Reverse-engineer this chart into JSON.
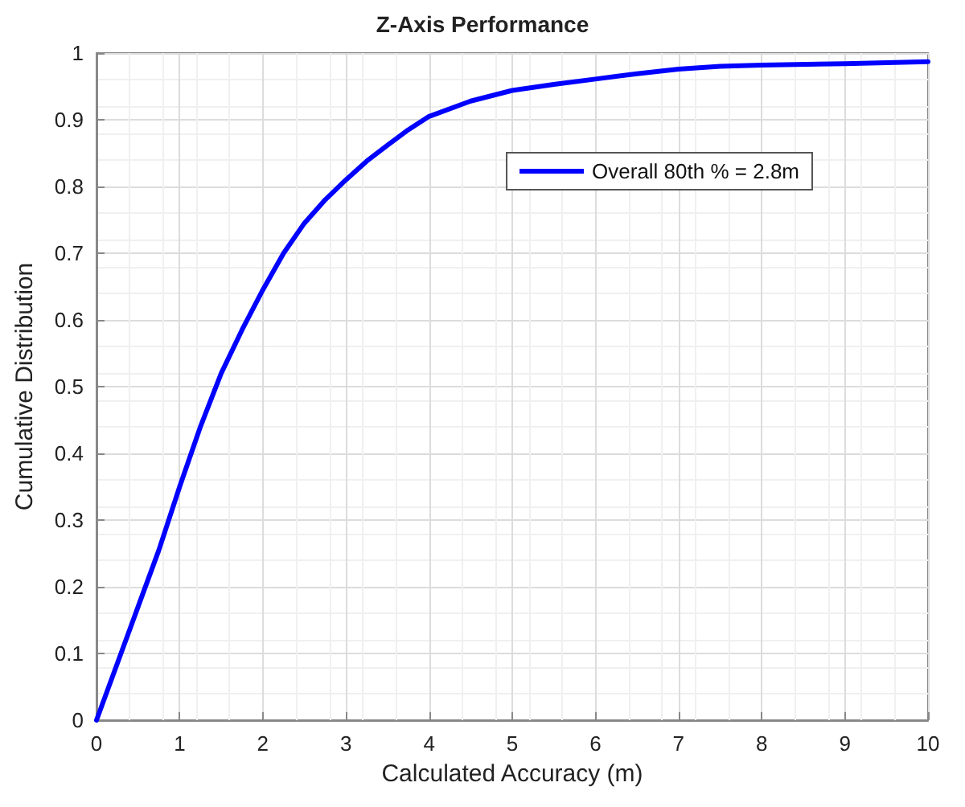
{
  "chart_data": {
    "type": "line",
    "title": "Z-Axis Performance",
    "xlabel": "Calculated Accuracy (m)",
    "ylabel": "Cumulative Distribution",
    "x": [
      0,
      0.25,
      0.5,
      0.75,
      1,
      1.25,
      1.5,
      1.75,
      2,
      2.25,
      2.5,
      2.75,
      3,
      3.25,
      3.5,
      3.75,
      4,
      4.5,
      5,
      5.5,
      6,
      6.5,
      7,
      7.5,
      8,
      9,
      10
    ],
    "series": [
      {
        "name": "Overall 80th % = 2.8m",
        "color": "#0000ff",
        "values": [
          0,
          0.085,
          0.17,
          0.255,
          0.35,
          0.44,
          0.52,
          0.585,
          0.645,
          0.7,
          0.745,
          0.78,
          0.81,
          0.838,
          0.862,
          0.885,
          0.905,
          0.928,
          0.944,
          0.953,
          0.961,
          0.969,
          0.976,
          0.98,
          0.982,
          0.984,
          0.987
        ]
      }
    ],
    "xlim": [
      0,
      10
    ],
    "ylim": [
      0,
      1
    ],
    "xticks": [
      0,
      1,
      2,
      3,
      4,
      5,
      6,
      7,
      8,
      9,
      10
    ],
    "yticks": [
      0,
      0.1,
      0.2,
      0.3,
      0.4,
      0.5,
      0.6,
      0.7,
      0.8,
      0.9,
      1
    ],
    "grid": true,
    "legend": "top right",
    "marker": "none",
    "line_style": "solid"
  }
}
